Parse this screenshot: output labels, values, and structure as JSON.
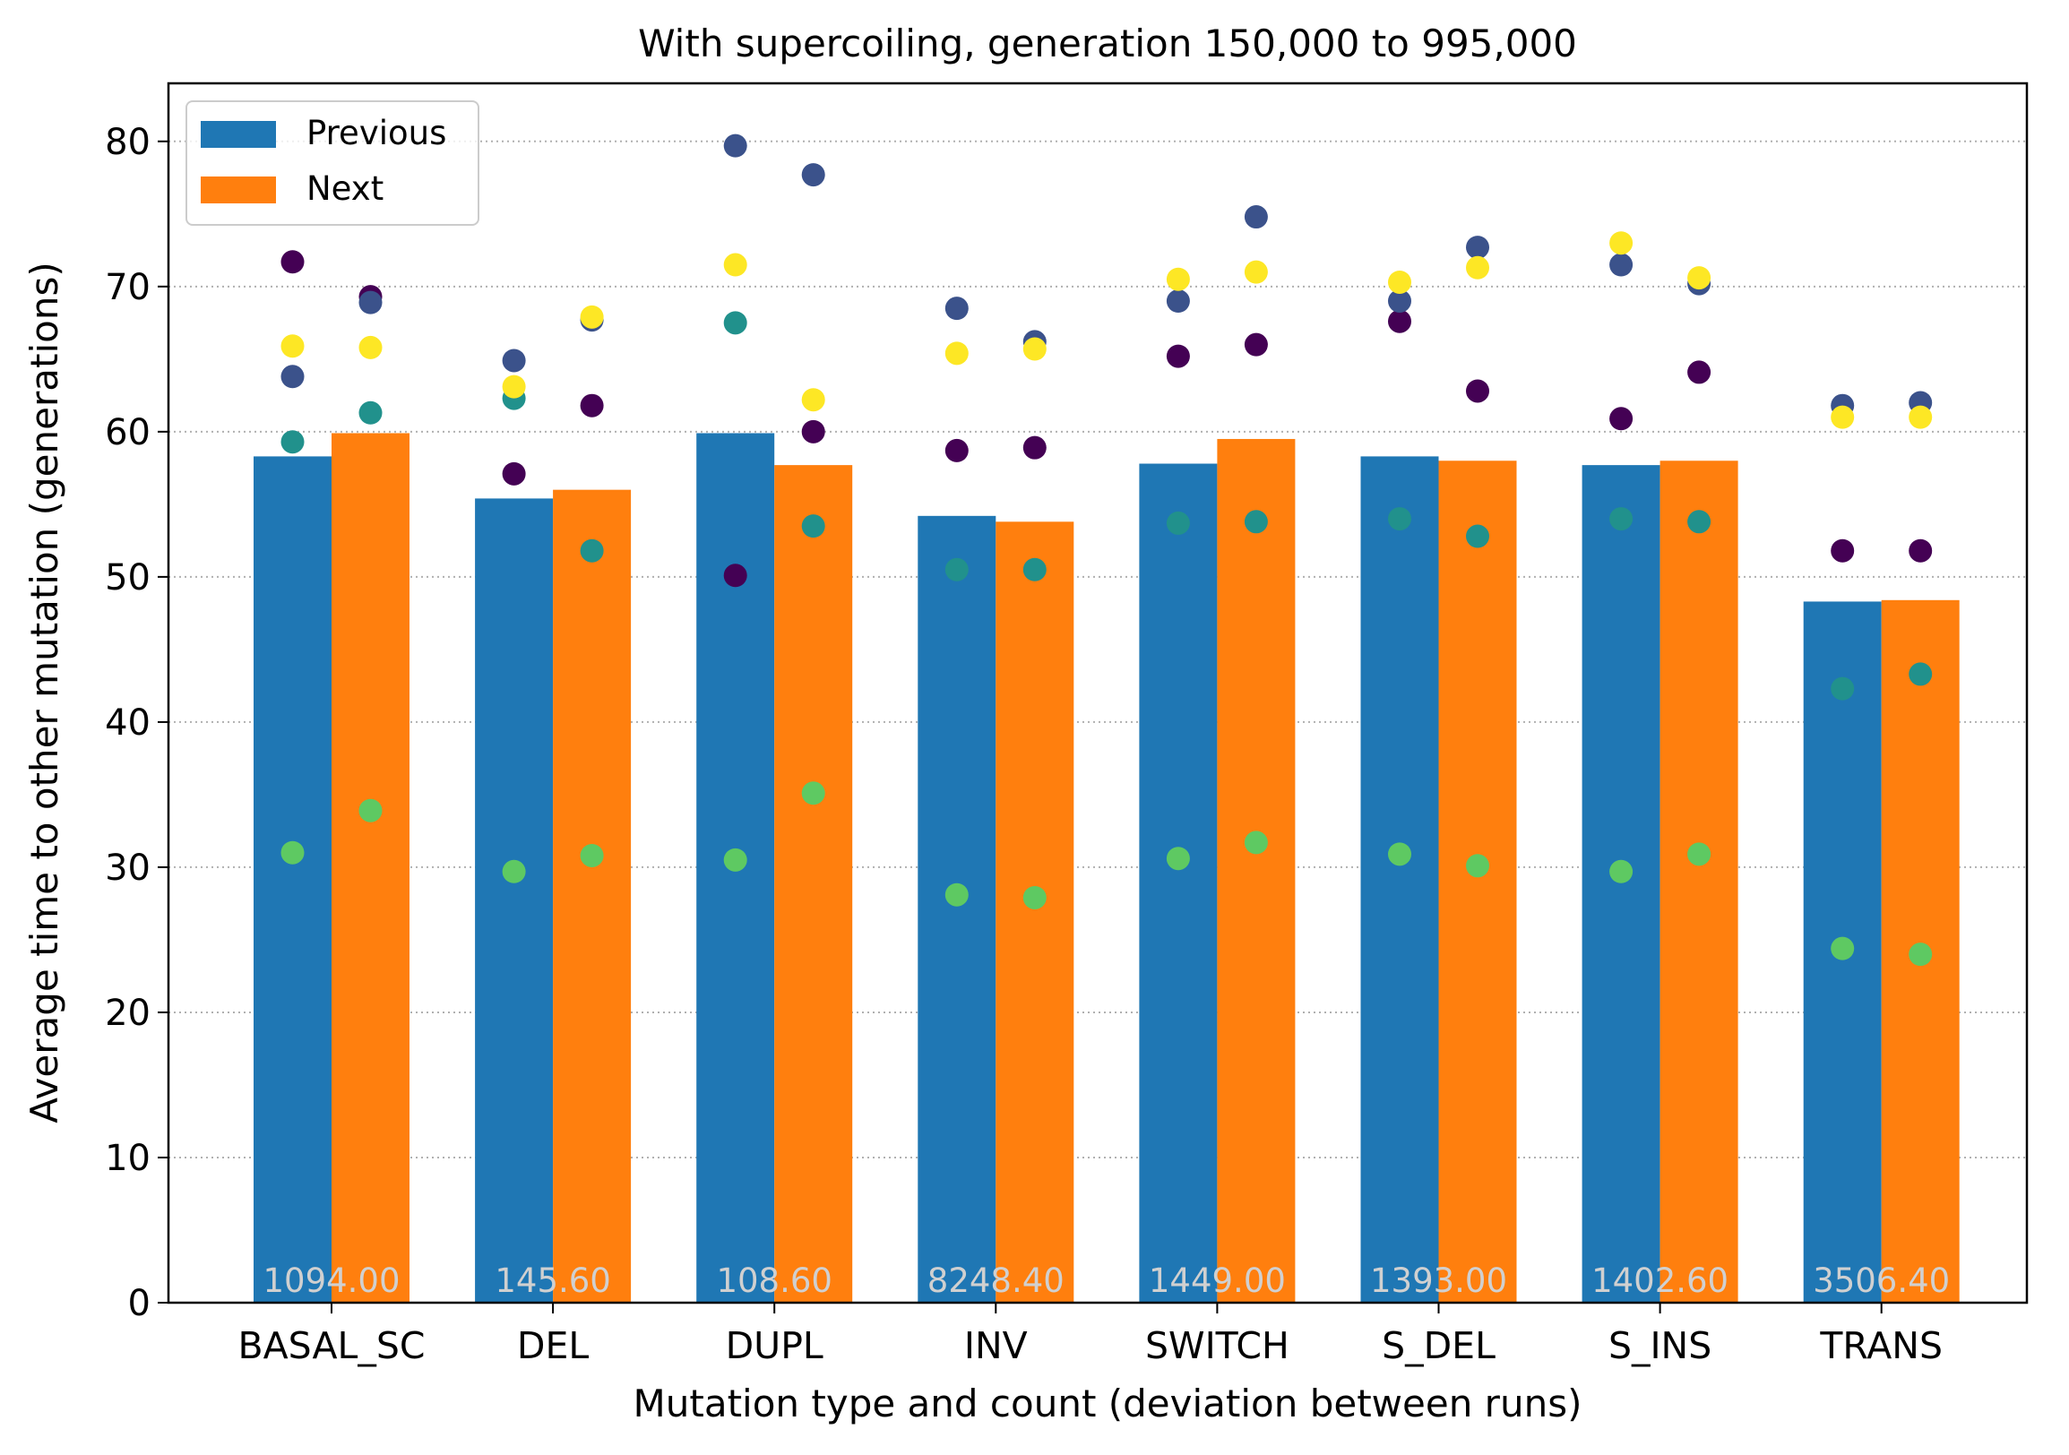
{
  "chart_data": {
    "type": "bar",
    "title": "With supercoiling, generation 150,000 to 995,000",
    "xlabel": "Mutation type and count (deviation between runs)",
    "ylabel": "Average time to other mutation (generations)",
    "ylim": [
      0,
      84
    ],
    "yticks": [
      0,
      10,
      20,
      30,
      40,
      50,
      60,
      70,
      80
    ],
    "grid": "horizontal dotted",
    "legend_position": "top-left",
    "categories": [
      "BASAL_SC",
      "DEL",
      "DUPL",
      "INV",
      "SWITCH",
      "S_DEL",
      "S_INS",
      "TRANS"
    ],
    "counts": [
      "1094.00",
      "145.60",
      "108.60",
      "8248.40",
      "1449.00",
      "1393.00",
      "1402.60",
      "3506.40"
    ],
    "series": [
      {
        "name": "Previous",
        "color": "#1f77b4",
        "values": [
          58.3,
          55.4,
          59.9,
          54.2,
          57.8,
          58.3,
          57.7,
          48.3
        ],
        "points": [
          [
            71.7,
            63.8,
            59.3,
            31.0,
            65.9
          ],
          [
            57.1,
            64.9,
            62.3,
            29.7,
            63.1
          ],
          [
            50.1,
            79.7,
            67.5,
            30.5,
            71.5
          ],
          [
            58.7,
            68.5,
            50.5,
            28.1,
            65.4
          ],
          [
            65.2,
            69.0,
            53.7,
            30.6,
            70.5
          ],
          [
            67.6,
            69.0,
            54.0,
            30.9,
            70.3
          ],
          [
            60.9,
            71.5,
            54.0,
            29.7,
            73.0
          ],
          [
            51.8,
            61.8,
            42.3,
            24.4,
            61.0
          ]
        ]
      },
      {
        "name": "Next",
        "color": "#ff7f0e",
        "values": [
          59.9,
          56.0,
          57.7,
          53.8,
          59.5,
          58.0,
          58.0,
          48.4
        ],
        "points": [
          [
            69.3,
            68.9,
            61.3,
            33.9,
            65.8
          ],
          [
            61.8,
            67.7,
            51.8,
            30.8,
            67.9
          ],
          [
            60.0,
            77.7,
            53.5,
            35.1,
            62.2
          ],
          [
            58.9,
            66.2,
            50.5,
            27.9,
            65.7
          ],
          [
            66.0,
            74.8,
            53.8,
            31.7,
            71.0
          ],
          [
            62.8,
            72.7,
            52.8,
            30.1,
            71.3
          ],
          [
            64.1,
            70.2,
            53.8,
            30.9,
            70.6
          ],
          [
            51.8,
            62.0,
            43.3,
            24.0,
            61.0
          ]
        ]
      }
    ],
    "point_colors": [
      "#440154",
      "#3b528b",
      "#21918c",
      "#5ec962",
      "#fde725"
    ],
    "count_label_color": "#d0d0d0"
  }
}
